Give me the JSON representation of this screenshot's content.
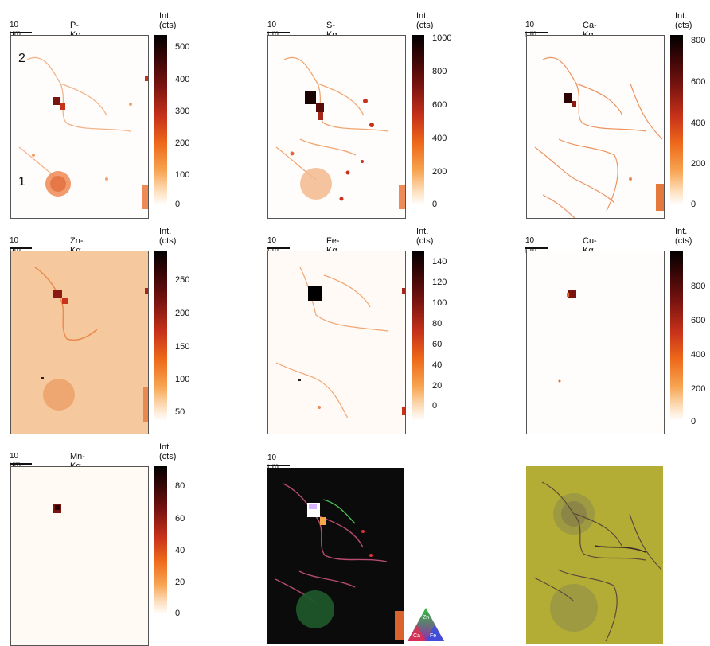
{
  "figure": {
    "panels": [
      {
        "element": "P-Kα",
        "scale_label": "10 μm",
        "cb_title": "Int.\n(cts)",
        "ticks": [
          "500",
          "400",
          "300",
          "200",
          "100",
          "0"
        ]
      },
      {
        "element": "S-Kα",
        "scale_label": "10 μm",
        "cb_title": "Int.\n(cts)",
        "ticks": [
          "1000",
          "800",
          "600",
          "400",
          "200",
          "0"
        ]
      },
      {
        "element": "Ca-Kα",
        "scale_label": "10 μm",
        "cb_title": "Int.\n(cts)",
        "ticks": [
          "800",
          "600",
          "400",
          "200",
          "0"
        ]
      },
      {
        "element": "Zn-Kα",
        "scale_label": "10 μm",
        "cb_title": "Int.\n(cts)",
        "ticks": [
          "250",
          "200",
          "150",
          "100",
          "50"
        ]
      },
      {
        "element": "Fe-Kα",
        "scale_label": "10 μm",
        "cb_title": "Int.\n(cts)",
        "ticks": [
          "140",
          "120",
          "100",
          "80",
          "60",
          "40",
          "20",
          "0"
        ]
      },
      {
        "element": "Cu-Kα",
        "scale_label": "10 μm",
        "cb_title": "Int.\n(cts)",
        "ticks": [
          "800",
          "600",
          "400",
          "200",
          "0"
        ]
      },
      {
        "element": "Mn-Kα",
        "scale_label": "10 μm",
        "cb_title": "Int.\n(cts)",
        "ticks": [
          "80",
          "60",
          "40",
          "20",
          "0"
        ]
      }
    ],
    "composite": {
      "scale_label": "10 μm",
      "triangle_labels": {
        "top": "Zn",
        "left": "Ca",
        "right": "Fe"
      }
    },
    "region_labels": {
      "first": "1",
      "second": "2"
    }
  }
}
